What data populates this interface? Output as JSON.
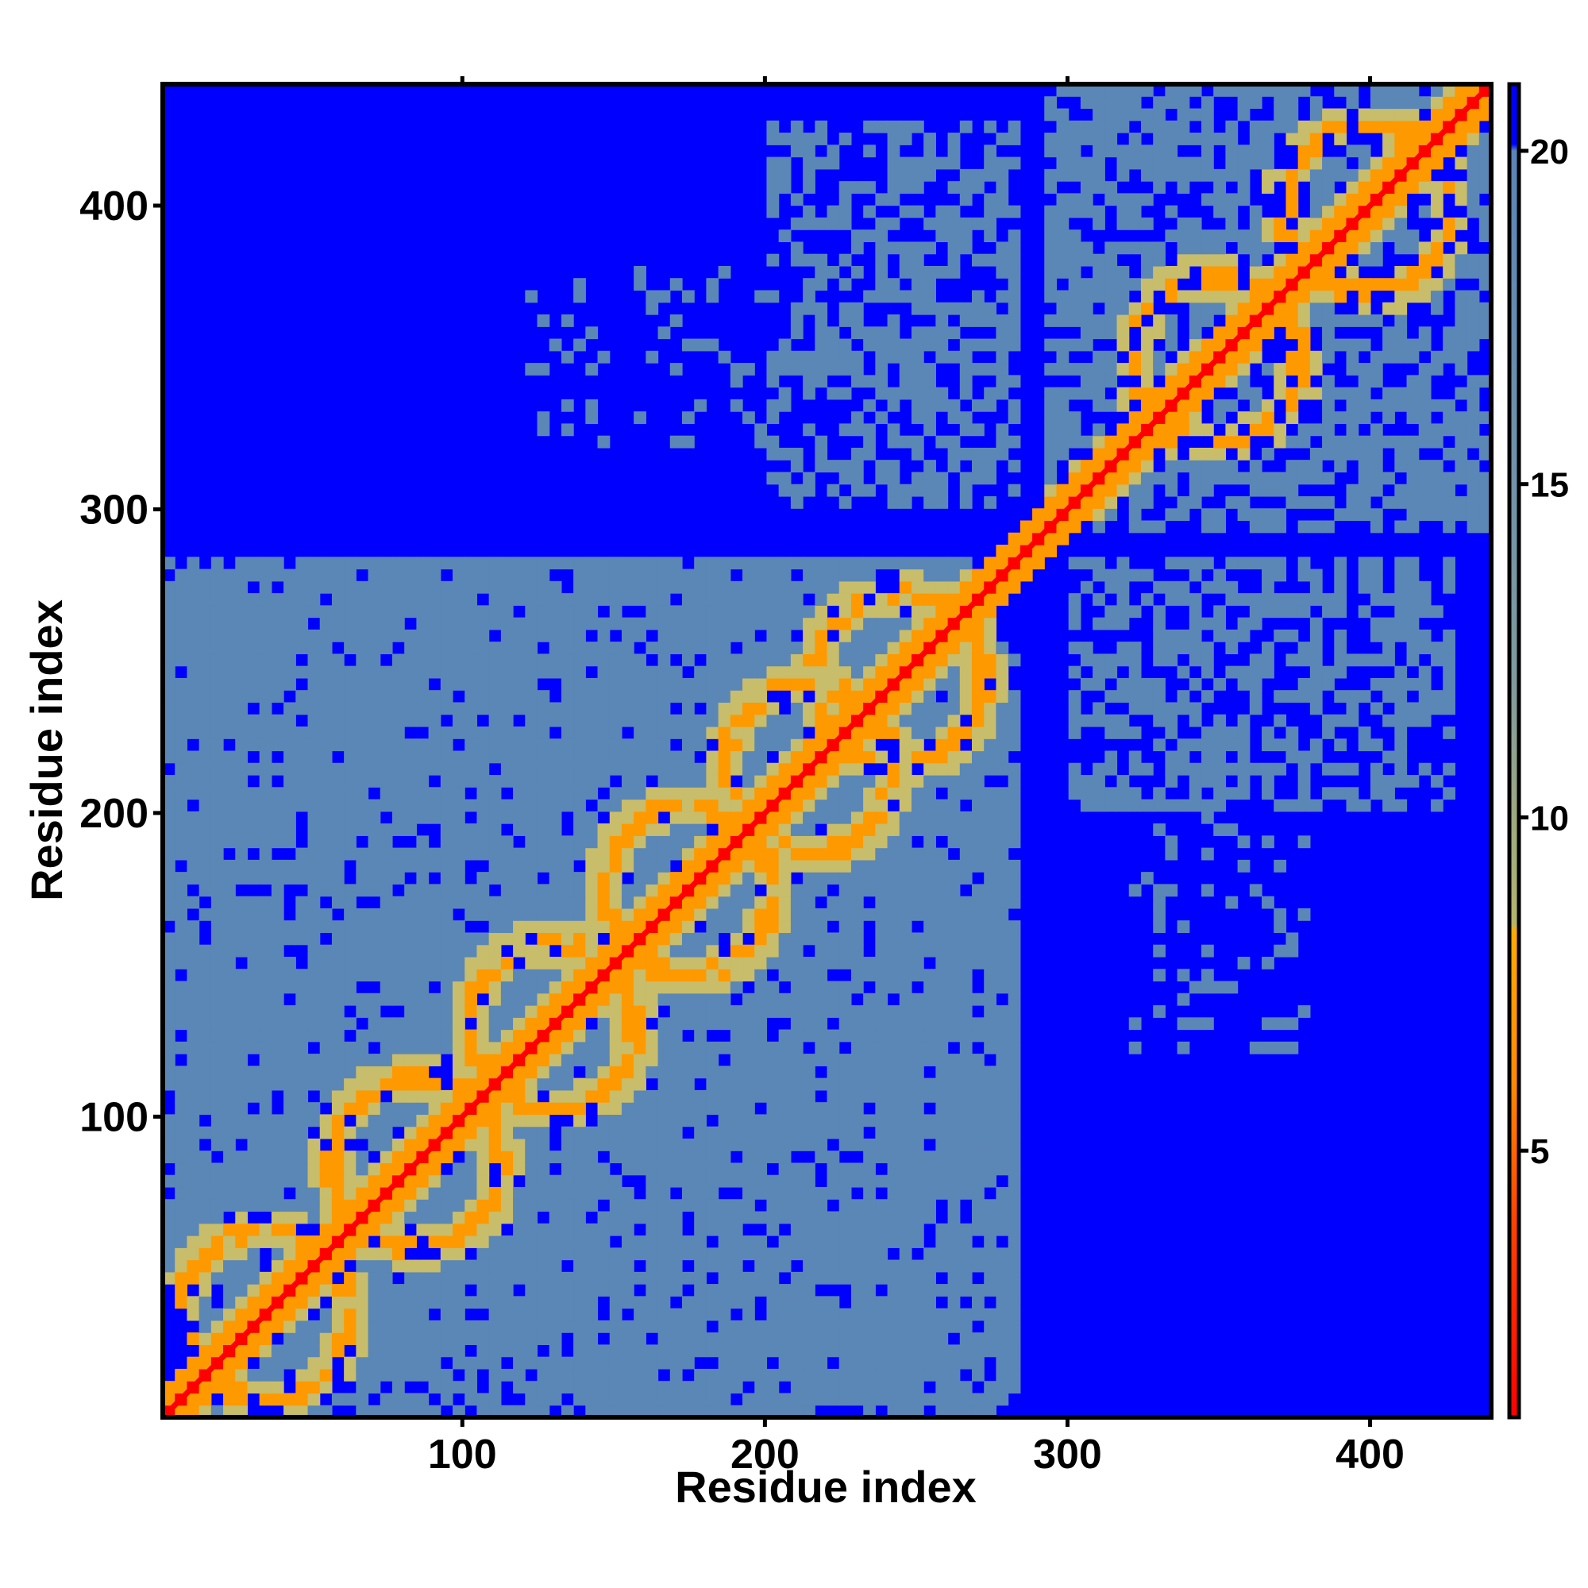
{
  "chart_data": {
    "type": "heatmap",
    "title": "",
    "xlabel": "Residue index",
    "ylabel": "Residue index",
    "xlim": [
      1,
      440
    ],
    "ylim": [
      1,
      440
    ],
    "x_ticks": [
      {
        "value": 100,
        "label": "100"
      },
      {
        "value": 200,
        "label": "200"
      },
      {
        "value": 300,
        "label": "300"
      },
      {
        "value": 400,
        "label": "400"
      }
    ],
    "y_ticks": [
      {
        "value": 100,
        "label": "100"
      },
      {
        "value": 200,
        "label": "200"
      },
      {
        "value": 300,
        "label": "300"
      },
      {
        "value": 400,
        "label": "400"
      }
    ],
    "colorbar": {
      "range": [
        1,
        21
      ],
      "ticks": [
        {
          "value": 5,
          "label": "5"
        },
        {
          "value": 10,
          "label": "10"
        },
        {
          "value": 15,
          "label": "15"
        },
        {
          "value": 20,
          "label": "20"
        }
      ],
      "stops": [
        {
          "value": 1,
          "color": "#ff0000"
        },
        {
          "value": 4,
          "color": "#ff4400"
        },
        {
          "value": 6,
          "color": "#ff8800"
        },
        {
          "value": 8.3,
          "color": "#ffaa00"
        },
        {
          "value": 8.4,
          "color": "#b5b56a"
        },
        {
          "value": 12,
          "color": "#7f9a9e"
        },
        {
          "value": 20,
          "color": "#5a84b8"
        },
        {
          "value": 20.1,
          "color": "#0000ff"
        },
        {
          "value": 21,
          "color": "#0000ff"
        }
      ]
    },
    "colors": {
      "far": "#0000ff",
      "mid": "#5b87b6",
      "near": "#ff0000",
      "ring": "#ff9900",
      "halo": "#c8bd6a"
    },
    "description_values": {
      "cutoff_angstrom": 20,
      "domains": [
        {
          "start": 1,
          "end": 280
        },
        {
          "start": 300,
          "end": 440
        }
      ],
      "ring_centers": [
        {
          "x": 35,
          "y": 35
        },
        {
          "x": 85,
          "y": 85
        },
        {
          "x": 130,
          "y": 130
        },
        {
          "x": 175,
          "y": 175
        },
        {
          "x": 215,
          "y": 215
        },
        {
          "x": 245,
          "y": 245
        },
        {
          "x": 350,
          "y": 350
        },
        {
          "x": 400,
          "y": 400
        }
      ]
    }
  }
}
